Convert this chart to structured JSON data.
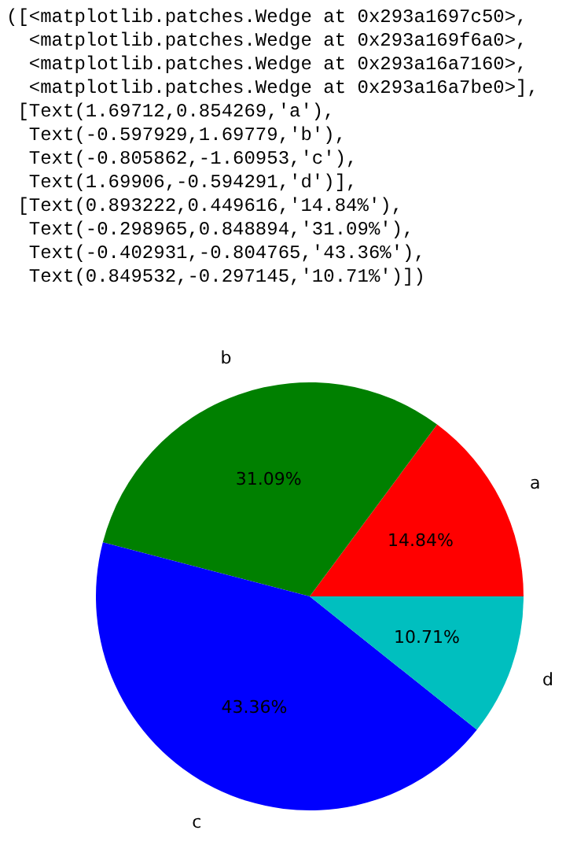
{
  "chart_data": {
    "type": "pie",
    "categories": [
      "a",
      "b",
      "c",
      "d"
    ],
    "values": [
      14.84,
      31.09,
      43.36,
      10.71
    ],
    "colors": [
      "#ff0000",
      "#008000",
      "#0000ff",
      "#00bfbf"
    ],
    "value_labels": [
      "14.84%",
      "31.09%",
      "43.36%",
      "10.71%"
    ],
    "annotations": [
      "([<matplotlib.patches.Wedge at 0x293a1697c50>,",
      "  <matplotlib.patches.Wedge at 0x293a169f6a0>,",
      "  <matplotlib.patches.Wedge at 0x293a16a7160>,",
      "  <matplotlib.patches.Wedge at 0x293a16a7be0>],",
      " [Text(1.69712,0.854269,'a'),",
      "  Text(-0.597929,1.69779,'b'),",
      "  Text(-0.805862,-1.60953,'c'),",
      "  Text(1.69906,-0.594291,'d')],",
      " [Text(0.893222,0.449616,'14.84%'),",
      "  Text(-0.298965,0.848894,'31.09%'),",
      "  Text(-0.402931,-0.804765,'43.36%'),",
      "  Text(0.849532,-0.297145,'10.71%')])"
    ]
  }
}
